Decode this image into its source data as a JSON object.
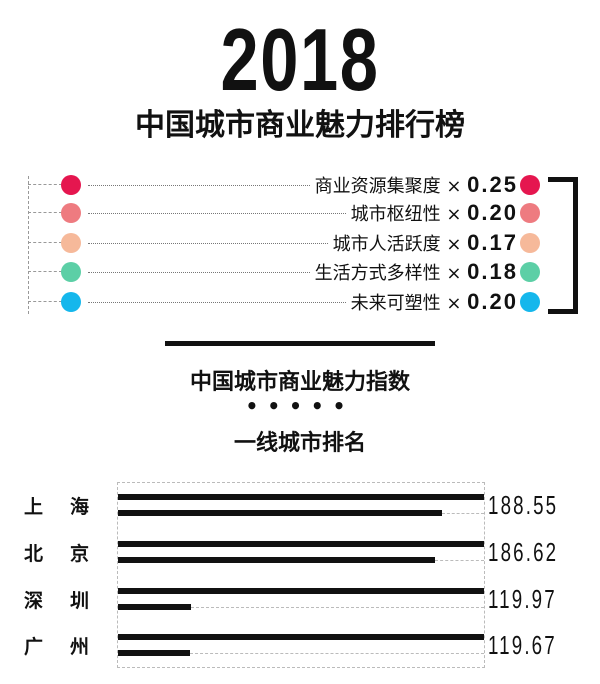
{
  "header": {
    "year": "2018",
    "subtitle": "中国城市商业魅力排行榜"
  },
  "weights": [
    {
      "label": "商业资源集聚度",
      "times": "×",
      "weight": "0.25",
      "color": "#e5164f"
    },
    {
      "label": "城市枢纽性",
      "times": "×",
      "weight": "0.20",
      "color": "#ee7b80"
    },
    {
      "label": "城市人活跃度",
      "times": "×",
      "weight": "0.17",
      "color": "#f6b99a"
    },
    {
      "label": "生活方式多样性",
      "times": "×",
      "weight": "0.18",
      "color": "#5ccfa6"
    },
    {
      "label": "未来可塑性",
      "times": "×",
      "weight": "0.20",
      "color": "#15b7ec"
    }
  ],
  "section": {
    "title": "中国城市商业魅力指数",
    "bullets": "•••••",
    "subtitle": "一线城市排名"
  },
  "chart_data": {
    "type": "bar",
    "categories": [
      "上海",
      "北京",
      "深圳",
      "广州"
    ],
    "city_chars": [
      [
        "上",
        "海"
      ],
      [
        "北",
        "京"
      ],
      [
        "深",
        "圳"
      ],
      [
        "广",
        "州"
      ]
    ],
    "values": [
      188.55,
      186.62,
      119.97,
      119.67
    ],
    "value_labels": [
      "188.55",
      "186.62",
      "119.97",
      "119.67"
    ],
    "xlim": [
      0,
      200
    ]
  }
}
